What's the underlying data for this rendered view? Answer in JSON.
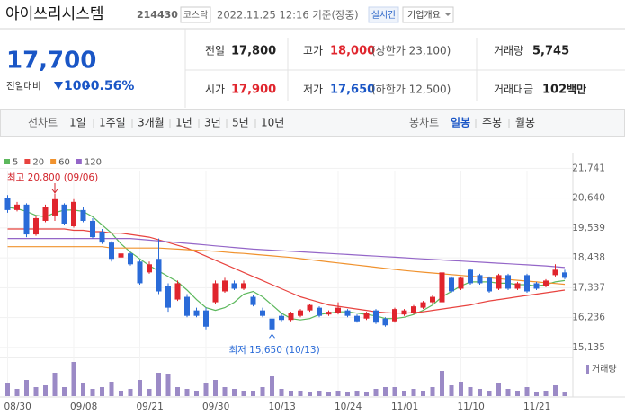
{
  "header": {
    "name": "아이쓰리시스템",
    "code": "214430",
    "market": "코스닥",
    "timestamp": "2022.11.25 12:16 기준(장중)",
    "realtime": "실시간",
    "info_button": "기업개요"
  },
  "quote": {
    "price": "17,700",
    "change_label": "전일대비",
    "change": "100",
    "change_rate": "-0.56%"
  },
  "stats": [
    {
      "label": "전일",
      "value": "17,800"
    },
    {
      "label": "고가",
      "value": "18,000",
      "note": "(상한가 23,100)"
    },
    {
      "label": "거래량",
      "value": "5,745"
    },
    {
      "label": "시가",
      "value": "17,900"
    },
    {
      "label": "저가",
      "value": "17,650",
      "note": "(하한가 12,500)"
    },
    {
      "label": "거래대금",
      "value": "102",
      "unit": "백만"
    }
  ],
  "tabs": {
    "line_label": "선차트",
    "line_periods": [
      "1일",
      "1주일",
      "3개월",
      "1년",
      "3년",
      "5년",
      "10년"
    ],
    "candle_label": "봉차트",
    "candle_periods": [
      "일봉",
      "주봉",
      "월봉"
    ],
    "active_candle": "일봉"
  },
  "chart_data": {
    "type": "candlestick",
    "categories": [
      "08/30",
      null,
      null,
      null,
      null,
      null,
      null,
      "09/08",
      null,
      null,
      null,
      null,
      null,
      null,
      "09/21",
      null,
      null,
      null,
      null,
      null,
      null,
      "09/30",
      null,
      null,
      null,
      null,
      null,
      null,
      "10/13",
      null,
      null,
      null,
      null,
      null,
      null,
      "10/24",
      null,
      null,
      null,
      null,
      null,
      "11/01",
      null,
      null,
      null,
      null,
      null,
      null,
      "11/10",
      null,
      null,
      null,
      null,
      null,
      null,
      "11/21",
      null,
      null,
      null,
      null
    ],
    "open": [
      20650,
      20200,
      20400,
      19300,
      19800,
      20000,
      20400,
      19600,
      20200,
      19800,
      19400,
      19000,
      18450,
      18600,
      18300,
      17900,
      18400,
      17400,
      16900,
      17000,
      16500,
      16500,
      16800,
      17200,
      17500,
      17300,
      17000,
      16500,
      16200,
      16300,
      16150,
      16300,
      16500,
      16600,
      16350,
      16400,
      16500,
      16300,
      16200,
      16500,
      16200,
      16100,
      16350,
      16400,
      16600,
      16800,
      16800,
      17700,
      17300,
      18000,
      17800,
      17700,
      17300,
      17800,
      17300,
      17800,
      17500,
      17400,
      17800,
      17900
    ],
    "high": [
      20750,
      20500,
      20450,
      20000,
      20400,
      20800,
      20450,
      20600,
      20300,
      19900,
      19500,
      19050,
      18700,
      18650,
      18350,
      18300,
      19150,
      17500,
      17600,
      17100,
      16600,
      16600,
      17600,
      17700,
      17600,
      17600,
      17050,
      16600,
      16300,
      16400,
      16450,
      16550,
      16750,
      16650,
      16500,
      16800,
      16550,
      16350,
      16450,
      16550,
      16250,
      16600,
      16550,
      16700,
      16850,
      17050,
      18000,
      17750,
      17750,
      18050,
      17850,
      17750,
      17850,
      17850,
      17550,
      17850,
      17550,
      17650,
      18200,
      18000
    ],
    "low": [
      20100,
      20150,
      19200,
      19250,
      19750,
      19800,
      19650,
      19550,
      19750,
      19150,
      18950,
      18300,
      18400,
      18150,
      17450,
      17850,
      17100,
      16450,
      16850,
      16250,
      16250,
      15800,
      16750,
      17150,
      17250,
      17250,
      16650,
      16250,
      15650,
      16100,
      16100,
      16250,
      16450,
      16250,
      16300,
      16350,
      16250,
      16050,
      16150,
      16000,
      15900,
      16050,
      16300,
      16350,
      16550,
      16750,
      16750,
      17150,
      17250,
      17450,
      17450,
      17150,
      17250,
      17250,
      17250,
      17150,
      17250,
      17350,
      17750,
      17650
    ],
    "close": [
      20200,
      20400,
      19300,
      19900,
      20300,
      20600,
      19700,
      20500,
      19800,
      19200,
      19000,
      18400,
      18600,
      18200,
      17500,
      18200,
      17200,
      16600,
      17500,
      16300,
      16300,
      15900,
      17500,
      17600,
      17300,
      17500,
      16700,
      16300,
      15800,
      16150,
      16400,
      16500,
      16700,
      16300,
      16450,
      16600,
      16300,
      16100,
      16400,
      16050,
      15950,
      16550,
      16500,
      16650,
      16800,
      17000,
      17900,
      17200,
      17700,
      17500,
      17500,
      17200,
      17800,
      17300,
      17500,
      17200,
      17300,
      17600,
      18000,
      17700
    ],
    "up_color": "#e0252d",
    "down_color": "#2a6bd8",
    "series": [
      {
        "name": "5",
        "color": "#5cb85c",
        "values": [
          20300,
          20250,
          20150,
          20000,
          19950,
          20100,
          20200,
          20200,
          20150,
          19950,
          19650,
          19350,
          18950,
          18650,
          18400,
          18150,
          17950,
          17750,
          17550,
          17250,
          16900,
          16600,
          16500,
          16600,
          16800,
          17100,
          17200,
          17000,
          16700,
          16400,
          16200,
          16150,
          16200,
          16350,
          16400,
          16450,
          16450,
          16400,
          16350,
          16300,
          16200,
          16200,
          16250,
          16350,
          16500,
          16700,
          17000,
          17200,
          17400,
          17550,
          17550,
          17550,
          17500,
          17500,
          17450,
          17450,
          17400,
          17450,
          17550,
          17600
        ]
      },
      {
        "name": "20",
        "color": "#e8433f",
        "values": [
          19500,
          19500,
          19500,
          19500,
          19500,
          19500,
          19500,
          19450,
          19450,
          19400,
          19400,
          19350,
          19350,
          19300,
          19250,
          19200,
          19100,
          19000,
          18900,
          18800,
          18650,
          18500,
          18350,
          18200,
          18050,
          17900,
          17750,
          17600,
          17450,
          17300,
          17150,
          17000,
          16900,
          16800,
          16700,
          16650,
          16600,
          16550,
          16500,
          16450,
          16420,
          16400,
          16400,
          16420,
          16450,
          16500,
          16550,
          16600,
          16650,
          16700,
          16780,
          16850,
          16900,
          16950,
          17000,
          17050,
          17100,
          17150,
          17200,
          17250
        ]
      },
      {
        "name": "60",
        "color": "#f0922e",
        "values": [
          18850,
          18850,
          18850,
          18850,
          18850,
          18850,
          18850,
          18850,
          18850,
          18850,
          18850,
          18800,
          18800,
          18800,
          18800,
          18800,
          18800,
          18780,
          18760,
          18740,
          18720,
          18700,
          18680,
          18650,
          18620,
          18600,
          18570,
          18540,
          18510,
          18480,
          18450,
          18410,
          18370,
          18330,
          18290,
          18250,
          18210,
          18170,
          18130,
          18090,
          18050,
          18010,
          17970,
          17940,
          17910,
          17880,
          17850,
          17820,
          17790,
          17760,
          17730,
          17700,
          17670,
          17640,
          17610,
          17580,
          17550,
          17520,
          17490,
          17460
        ]
      },
      {
        "name": "120",
        "color": "#9466c8",
        "values": [
          19150,
          19150,
          19150,
          19150,
          19150,
          19150,
          19150,
          19150,
          19150,
          19150,
          19150,
          19150,
          19150,
          19150,
          19120,
          19090,
          19060,
          19030,
          19000,
          18970,
          18940,
          18910,
          18880,
          18850,
          18820,
          18790,
          18760,
          18740,
          18720,
          18700,
          18680,
          18660,
          18640,
          18620,
          18600,
          18580,
          18560,
          18540,
          18520,
          18500,
          18480,
          18460,
          18440,
          18420,
          18400,
          18380,
          18360,
          18340,
          18320,
          18300,
          18280,
          18260,
          18240,
          18220,
          18200,
          18180,
          18160,
          18140,
          18110,
          18080
        ]
      }
    ],
    "volume": {
      "name": "거래량",
      "color": "#9b8ac6",
      "values": [
        21750,
        11600,
        26100,
        14500,
        17400,
        37700,
        14500,
        55100,
        20300,
        11600,
        14500,
        23200,
        8700,
        11600,
        26100,
        11600,
        37700,
        34800,
        14500,
        11600,
        8700,
        20300,
        26100,
        14500,
        11600,
        8700,
        8700,
        14500,
        31900,
        11600,
        8700,
        8700,
        5800,
        8700,
        5800,
        8700,
        5800,
        8700,
        5800,
        11600,
        14500,
        14500,
        8700,
        11600,
        8700,
        14500,
        40600,
        17400,
        23200,
        14500,
        11600,
        8700,
        20300,
        11600,
        8700,
        14500,
        5800,
        8700,
        17400,
        5745
      ]
    },
    "ylim": [
      14800,
      22050
    ],
    "yticks": [
      {
        "value": 15135,
        "label": "15,135"
      },
      {
        "value": 16236,
        "label": "16,236"
      },
      {
        "value": 17337,
        "label": "17,337"
      },
      {
        "value": 18438,
        "label": "18,438"
      },
      {
        "value": 19539,
        "label": "19,539"
      },
      {
        "value": 20640,
        "label": "20,640"
      },
      {
        "value": 21741,
        "label": "21,741"
      }
    ],
    "annotations": {
      "high": "최고 20,800 (09/06)",
      "low": "최저 15,650 (10/13)"
    }
  }
}
